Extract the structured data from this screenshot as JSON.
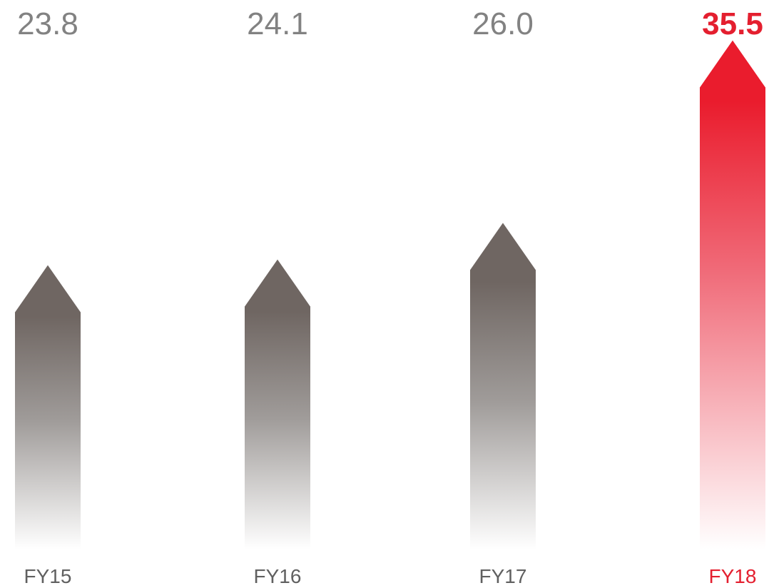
{
  "chart_data": {
    "type": "bar",
    "categories": [
      "FY15",
      "FY16",
      "FY17",
      "FY18"
    ],
    "values": [
      23.8,
      24.1,
      26.0,
      35.5
    ],
    "value_labels": [
      "23.8",
      "24.1",
      "26.0",
      "35.5"
    ],
    "highlight_index": 3,
    "bar_shape": "upward-arrow",
    "grid": false,
    "legend": "none"
  },
  "colors": {
    "normal_bar": "#6f6662",
    "normal_text": "#828282",
    "highlight": "#ea1c2d",
    "highlight_text": "#e41f2f",
    "category_text": "#606060"
  }
}
